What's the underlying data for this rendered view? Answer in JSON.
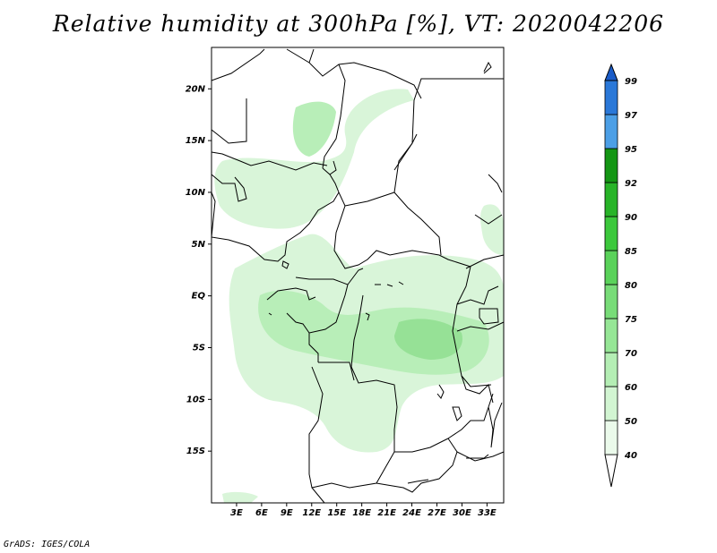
{
  "title": "Relative humidity at 300hPa [%], VT: 2020042206",
  "footer": "GrADS: IGES/COLA",
  "map": {
    "lat_labels": [
      "20N",
      "15N",
      "10N",
      "5N",
      "EQ",
      "5S",
      "10S",
      "15S"
    ],
    "lon_labels": [
      "3E",
      "6E",
      "9E",
      "12E",
      "15E",
      "18E",
      "21E",
      "24E",
      "27E",
      "30E",
      "33E"
    ],
    "lat_range": [
      -20,
      24
    ],
    "lon_range": [
      0,
      35
    ]
  },
  "colorbar": {
    "labels": [
      "40",
      "50",
      "60",
      "70",
      "75",
      "80",
      "85",
      "90",
      "92",
      "95",
      "97",
      "99"
    ],
    "colors": [
      "#ebfaeb",
      "#d2f5d2",
      "#b4eeb4",
      "#96e696",
      "#78dc78",
      "#5ad25a",
      "#3cc83c",
      "#28b428",
      "#149614",
      "#4c9fe6",
      "#2a78d8",
      "#1a5cc8"
    ],
    "top_color": "#1a5cc8",
    "bottom_color": "#ffffff"
  },
  "fill_colors": {
    "light": "#d9f5d9",
    "mid": "#b8eeb8",
    "dark": "#96e196"
  }
}
